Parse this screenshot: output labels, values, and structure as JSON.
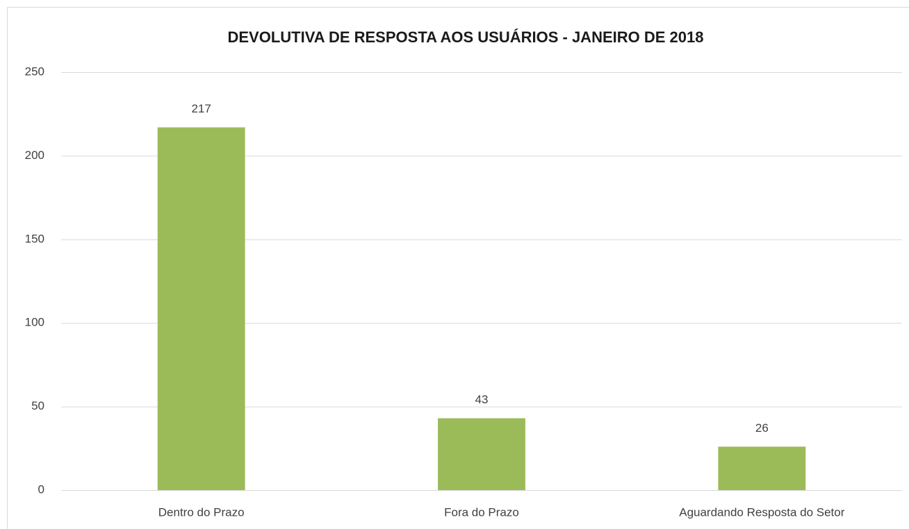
{
  "chart_data": {
    "type": "bar",
    "title": "DEVOLUTIVA DE RESPOSTA AOS USUÁRIOS - JANEIRO DE 2018",
    "categories": [
      "Dentro do Prazo",
      "Fora do Prazo",
      "Aguardando Resposta do Setor"
    ],
    "values": [
      217,
      43,
      26
    ],
    "color": "#9bbb59",
    "ylim": [
      0,
      250
    ],
    "yticks": [
      0,
      50,
      100,
      150,
      200,
      250
    ],
    "grid": true,
    "data_labels": true
  }
}
